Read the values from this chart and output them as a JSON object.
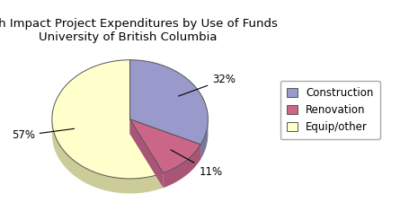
{
  "title": "High Impact Project Expenditures by Use of Funds\nUniversity of British Columbia",
  "title_fontsize": 9.5,
  "labels": [
    "Construction",
    "Renovation",
    "Equip/other"
  ],
  "values": [
    32,
    11,
    57
  ],
  "colors": [
    "#9999CC",
    "#CC6688",
    "#FFFFCC"
  ],
  "shadow_colors": [
    "#777799",
    "#996655",
    "#BBBB99"
  ],
  "pct_labels": [
    "32%",
    "11%",
    "57%"
  ],
  "legend_labels": [
    "Construction",
    "Renovation",
    "Equip/other"
  ],
  "startangle": 90,
  "background_color": "#ffffff",
  "legend_fontsize": 8.5
}
